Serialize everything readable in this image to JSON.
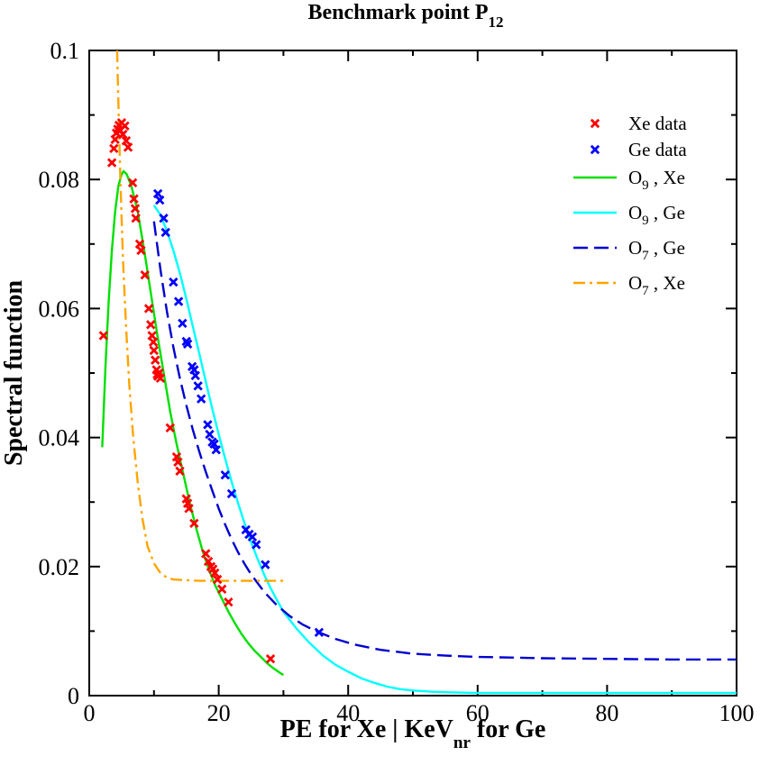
{
  "chart_data": {
    "type": "line",
    "title": "Benchmark point P",
    "title_subscript": "12",
    "xlabel_parts": [
      "PE for Xe | KeV",
      "nr",
      " for Ge"
    ],
    "ylabel": "Spectral function",
    "xlim": [
      0,
      100
    ],
    "ylim": [
      0,
      0.1
    ],
    "x_ticks": [
      0,
      20,
      40,
      60,
      80,
      100
    ],
    "x_tick_labels": [
      "0",
      "20",
      "40",
      "60",
      "80",
      "100"
    ],
    "y_ticks": [
      0,
      0.02,
      0.04,
      0.06,
      0.08,
      0.1
    ],
    "y_tick_labels": [
      "0",
      "0.02",
      "0.04",
      "0.06",
      "0.08",
      "0.1"
    ],
    "legend_position": "top-right",
    "scatter_series": [
      {
        "name": "Xe data",
        "color": "#ff0000",
        "marker": "x",
        "points": [
          [
            2.2,
            0.0558
          ],
          [
            3.5,
            0.0826
          ],
          [
            3.8,
            0.0848
          ],
          [
            4.0,
            0.0862
          ],
          [
            4.2,
            0.0872
          ],
          [
            4.4,
            0.0878
          ],
          [
            4.6,
            0.0884
          ],
          [
            4.8,
            0.0876
          ],
          [
            5.0,
            0.0888
          ],
          [
            5.2,
            0.087
          ],
          [
            5.5,
            0.0883
          ],
          [
            5.7,
            0.086
          ],
          [
            6.0,
            0.085
          ],
          [
            6.7,
            0.0795
          ],
          [
            6.9,
            0.077
          ],
          [
            7.1,
            0.0755
          ],
          [
            7.2,
            0.074
          ],
          [
            7.8,
            0.07
          ],
          [
            8.0,
            0.069
          ],
          [
            8.6,
            0.0652
          ],
          [
            9.2,
            0.06
          ],
          [
            9.5,
            0.0575
          ],
          [
            9.7,
            0.0558
          ],
          [
            9.9,
            0.0548
          ],
          [
            10.0,
            0.0535
          ],
          [
            10.2,
            0.052
          ],
          [
            10.4,
            0.0505
          ],
          [
            10.5,
            0.0498
          ],
          [
            10.6,
            0.0495
          ],
          [
            10.8,
            0.05
          ],
          [
            11.0,
            0.0492
          ],
          [
            12.5,
            0.0415
          ],
          [
            13.5,
            0.037
          ],
          [
            13.7,
            0.0362
          ],
          [
            14.0,
            0.0348
          ],
          [
            15.0,
            0.0305
          ],
          [
            15.2,
            0.0298
          ],
          [
            15.4,
            0.029
          ],
          [
            16.2,
            0.0267
          ],
          [
            18.0,
            0.022
          ],
          [
            18.4,
            0.0208
          ],
          [
            18.8,
            0.02
          ],
          [
            19.1,
            0.0196
          ],
          [
            19.4,
            0.019
          ],
          [
            19.8,
            0.018
          ],
          [
            20.5,
            0.0165
          ],
          [
            21.5,
            0.0145
          ],
          [
            28.0,
            0.0057
          ]
        ]
      },
      {
        "name": "Ge data",
        "color": "#0000ff",
        "marker": "x",
        "points": [
          [
            10.6,
            0.0778
          ],
          [
            10.9,
            0.0768
          ],
          [
            11.5,
            0.074
          ],
          [
            11.8,
            0.0718
          ],
          [
            13.0,
            0.0641
          ],
          [
            13.8,
            0.0611
          ],
          [
            14.4,
            0.0577
          ],
          [
            15.0,
            0.0549
          ],
          [
            15.2,
            0.0545
          ],
          [
            15.9,
            0.051
          ],
          [
            16.2,
            0.0505
          ],
          [
            16.4,
            0.0496
          ],
          [
            16.8,
            0.048
          ],
          [
            17.3,
            0.046
          ],
          [
            18.3,
            0.042
          ],
          [
            18.6,
            0.0405
          ],
          [
            19.0,
            0.0393
          ],
          [
            19.3,
            0.039
          ],
          [
            19.6,
            0.0381
          ],
          [
            21.0,
            0.0342
          ],
          [
            22.0,
            0.0313
          ],
          [
            24.2,
            0.0257
          ],
          [
            24.7,
            0.025
          ],
          [
            25.2,
            0.0246
          ],
          [
            25.8,
            0.0234
          ],
          [
            27.2,
            0.0203
          ],
          [
            35.5,
            0.0098
          ]
        ]
      }
    ],
    "line_series": [
      {
        "name": "O",
        "subscript": "9",
        "suffix": " , Xe",
        "color": "#00e000",
        "dash": "solid",
        "points": [
          [
            2.0,
            0.0385
          ],
          [
            2.5,
            0.051
          ],
          [
            3.0,
            0.061
          ],
          [
            3.5,
            0.069
          ],
          [
            4.0,
            0.075
          ],
          [
            4.5,
            0.079
          ],
          [
            5.0,
            0.0808
          ],
          [
            5.3,
            0.0813
          ],
          [
            5.8,
            0.0808
          ],
          [
            6.5,
            0.079
          ],
          [
            7.5,
            0.075
          ],
          [
            8.5,
            0.069
          ],
          [
            9.5,
            0.0625
          ],
          [
            10.5,
            0.056
          ],
          [
            11.5,
            0.05
          ],
          [
            12.5,
            0.044
          ],
          [
            13.5,
            0.039
          ],
          [
            14.5,
            0.0345
          ],
          [
            15.5,
            0.03
          ],
          [
            16.5,
            0.026
          ],
          [
            17.5,
            0.0225
          ],
          [
            18.5,
            0.0195
          ],
          [
            19.5,
            0.017
          ],
          [
            20.5,
            0.015
          ],
          [
            21.5,
            0.013
          ],
          [
            22.5,
            0.0112
          ],
          [
            23.5,
            0.0096
          ],
          [
            24.5,
            0.0082
          ],
          [
            25.5,
            0.007
          ],
          [
            26.5,
            0.006
          ],
          [
            27.5,
            0.005
          ],
          [
            28.5,
            0.0042
          ],
          [
            29.5,
            0.0035
          ],
          [
            30.0,
            0.0032
          ]
        ]
      },
      {
        "name": "O",
        "subscript": "9",
        "suffix": " , Ge",
        "color": "#00ffff",
        "dash": "solid",
        "points": [
          [
            10.0,
            0.076
          ],
          [
            11.0,
            0.0745
          ],
          [
            12.0,
            0.072
          ],
          [
            13.0,
            0.069
          ],
          [
            14.0,
            0.0655
          ],
          [
            15.0,
            0.0615
          ],
          [
            16.0,
            0.0572
          ],
          [
            17.0,
            0.053
          ],
          [
            18.0,
            0.0487
          ],
          [
            19.0,
            0.0445
          ],
          [
            20.0,
            0.0405
          ],
          [
            21.0,
            0.0367
          ],
          [
            22.0,
            0.0331
          ],
          [
            23.0,
            0.0298
          ],
          [
            24.0,
            0.0267
          ],
          [
            25.0,
            0.0238
          ],
          [
            26.0,
            0.0212
          ],
          [
            27.0,
            0.0188
          ],
          [
            28.0,
            0.0167
          ],
          [
            29.0,
            0.0148
          ],
          [
            30.0,
            0.013
          ],
          [
            32.0,
            0.0104
          ],
          [
            34.0,
            0.0082
          ],
          [
            36.0,
            0.0063
          ],
          [
            38.0,
            0.0048
          ],
          [
            40.0,
            0.0037
          ],
          [
            42.0,
            0.0027
          ],
          [
            44.0,
            0.002
          ],
          [
            46.0,
            0.0014
          ],
          [
            48.0,
            0.001
          ],
          [
            50.0,
            0.0008
          ],
          [
            53.0,
            0.0006
          ],
          [
            56.0,
            0.0005
          ],
          [
            60.0,
            0.0004
          ],
          [
            70.0,
            0.0004
          ],
          [
            80.0,
            0.0004
          ],
          [
            90.0,
            0.0004
          ],
          [
            100.0,
            0.0004
          ]
        ]
      },
      {
        "name": "O",
        "subscript": "7",
        "suffix": " , Ge",
        "color": "#0000d0",
        "dash": "dashed",
        "points": [
          [
            10.0,
            0.0735
          ],
          [
            11.0,
            0.066
          ],
          [
            12.0,
            0.0595
          ],
          [
            13.0,
            0.054
          ],
          [
            14.0,
            0.0492
          ],
          [
            15.0,
            0.045
          ],
          [
            16.0,
            0.0412
          ],
          [
            17.0,
            0.0378
          ],
          [
            18.0,
            0.0347
          ],
          [
            19.0,
            0.0318
          ],
          [
            20.0,
            0.029
          ],
          [
            21.0,
            0.0265
          ],
          [
            22.0,
            0.0242
          ],
          [
            23.0,
            0.0222
          ],
          [
            24.0,
            0.0204
          ],
          [
            25.0,
            0.0188
          ],
          [
            27.0,
            0.0161
          ],
          [
            29.0,
            0.014
          ],
          [
            31.0,
            0.0123
          ],
          [
            33.0,
            0.011
          ],
          [
            35.0,
            0.01
          ],
          [
            38.0,
            0.0088
          ],
          [
            41.0,
            0.0079
          ],
          [
            45.0,
            0.0071
          ],
          [
            50.0,
            0.0065
          ],
          [
            55.0,
            0.0062
          ],
          [
            60.0,
            0.006
          ],
          [
            70.0,
            0.0058
          ],
          [
            80.0,
            0.0057
          ],
          [
            90.0,
            0.0056
          ],
          [
            100.0,
            0.0056
          ]
        ]
      },
      {
        "name": "O",
        "subscript": "7",
        "suffix": " , Xe",
        "color": "#ffa500",
        "dash": "dashdot",
        "points": [
          [
            4.3,
            0.1
          ],
          [
            4.5,
            0.092
          ],
          [
            4.8,
            0.08
          ],
          [
            5.2,
            0.068
          ],
          [
            5.7,
            0.057
          ],
          [
            6.2,
            0.048
          ],
          [
            6.8,
            0.04
          ],
          [
            7.5,
            0.033
          ],
          [
            8.2,
            0.0275
          ],
          [
            9.0,
            0.0232
          ],
          [
            10.0,
            0.0205
          ],
          [
            11.0,
            0.019
          ],
          [
            12.0,
            0.0183
          ],
          [
            13.0,
            0.018
          ],
          [
            14.5,
            0.0179
          ],
          [
            17.0,
            0.0178
          ],
          [
            20.0,
            0.0178
          ],
          [
            25.0,
            0.0178
          ],
          [
            30.0,
            0.0178
          ]
        ]
      }
    ]
  }
}
